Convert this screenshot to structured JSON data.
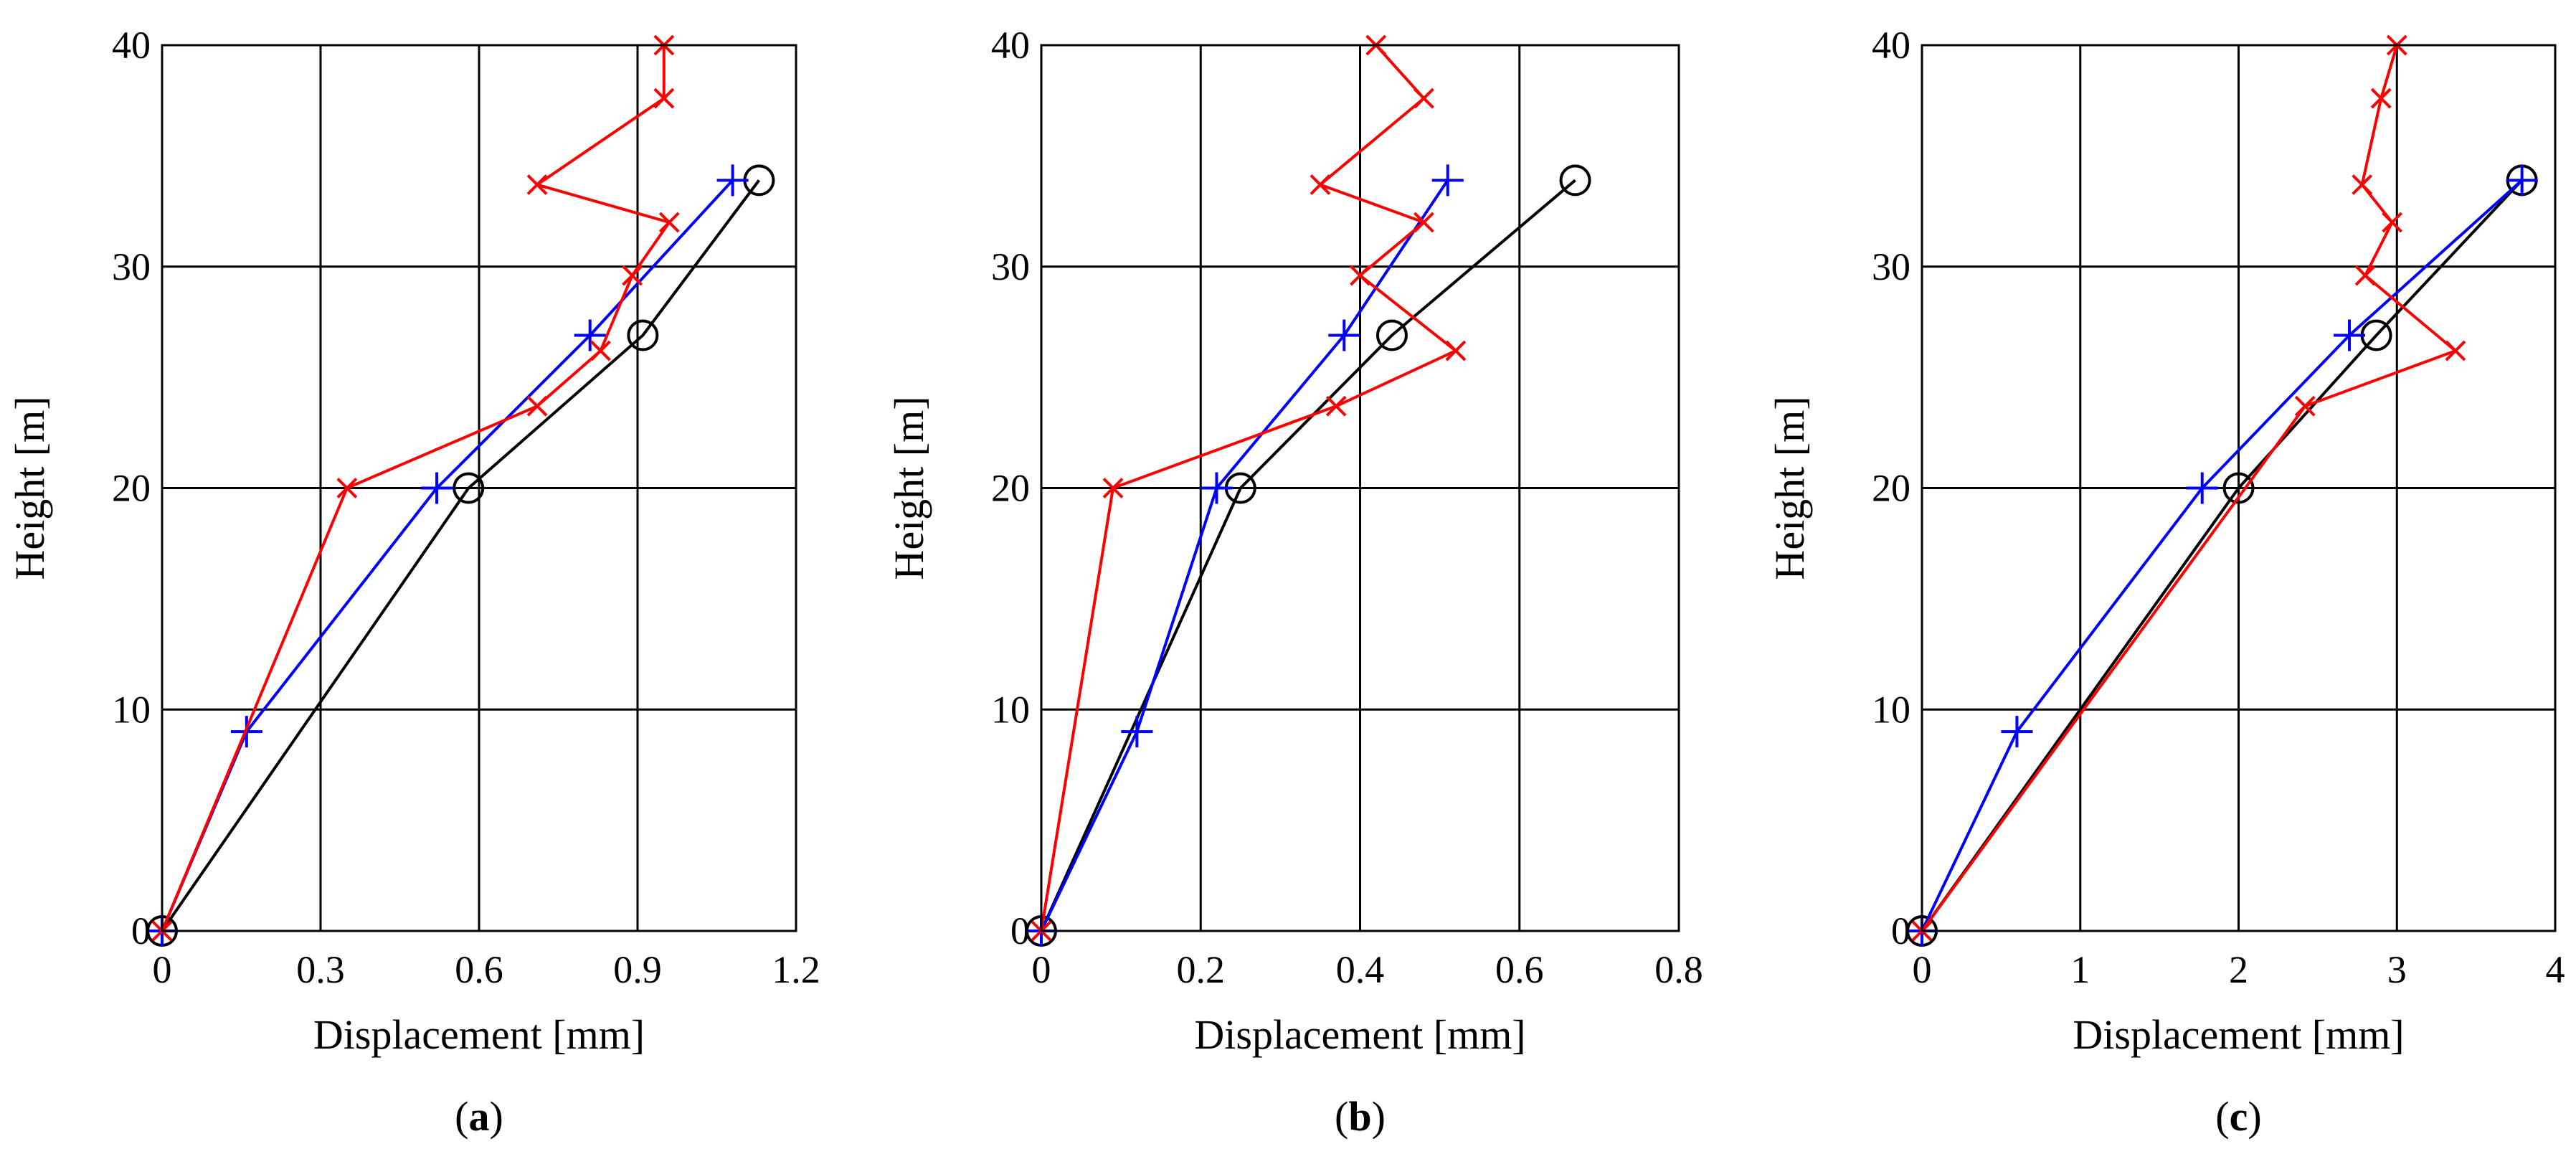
{
  "chart_data": [
    {
      "type": "line",
      "panel_label": "a",
      "xlabel": "Displacement [mm]",
      "ylabel": "Height [m]",
      "xlim": [
        0,
        1.2
      ],
      "ylim": [
        0,
        40
      ],
      "xticks": [
        "0",
        "0.3",
        "0.6",
        "0.9",
        "1.2"
      ],
      "yticks": [
        "0",
        "10",
        "20",
        "30",
        "40"
      ],
      "grid": true,
      "series": [
        {
          "name": "circle",
          "color": "#000000",
          "marker": "circle",
          "x": [
            0,
            0.58,
            0.91,
            1.13
          ],
          "y": [
            0,
            20,
            26.9,
            33.9
          ]
        },
        {
          "name": "plus",
          "color": "#0000ff",
          "marker": "plus",
          "x": [
            0,
            0.16,
            0.52,
            0.81,
            1.08
          ],
          "y": [
            0,
            9,
            20,
            26.9,
            33.9
          ]
        },
        {
          "name": "cross",
          "color": "#ff0000",
          "marker": "x",
          "x": [
            0,
            0.35,
            0.71,
            0.83,
            0.89,
            0.96,
            0.71,
            0.95,
            0.95
          ],
          "y": [
            0,
            20,
            23.7,
            26.2,
            29.6,
            32,
            33.7,
            37.6,
            40
          ]
        }
      ]
    },
    {
      "type": "line",
      "panel_label": "b",
      "xlabel": "Displacement [mm]",
      "ylabel": "Height [m]",
      "xlim": [
        0,
        0.8
      ],
      "ylim": [
        0,
        40
      ],
      "xticks": [
        "0",
        "0.2",
        "0.4",
        "0.6",
        "0.8"
      ],
      "yticks": [
        "0",
        "10",
        "20",
        "30",
        "40"
      ],
      "grid": true,
      "series": [
        {
          "name": "circle",
          "color": "#000000",
          "marker": "circle",
          "x": [
            0,
            0.25,
            0.44,
            0.67
          ],
          "y": [
            0,
            20,
            26.9,
            33.9
          ]
        },
        {
          "name": "plus",
          "color": "#0000ff",
          "marker": "plus",
          "x": [
            0,
            0.12,
            0.22,
            0.38,
            0.51
          ],
          "y": [
            0,
            9,
            20,
            26.9,
            33.9
          ]
        },
        {
          "name": "cross",
          "color": "#ff0000",
          "marker": "x",
          "x": [
            0,
            0.09,
            0.37,
            0.52,
            0.4,
            0.48,
            0.35,
            0.48,
            0.42
          ],
          "y": [
            0,
            20,
            23.7,
            26.2,
            29.6,
            32,
            33.7,
            37.6,
            40
          ]
        }
      ]
    },
    {
      "type": "line",
      "panel_label": "c",
      "xlabel": "Displacement [mm]",
      "ylabel": "Height [m]",
      "xlim": [
        0,
        4
      ],
      "ylim": [
        0,
        40
      ],
      "xticks": [
        "0",
        "1",
        "2",
        "3",
        "4"
      ],
      "yticks": [
        "0",
        "10",
        "20",
        "30",
        "40"
      ],
      "grid": true,
      "series": [
        {
          "name": "circle",
          "color": "#000000",
          "marker": "circle",
          "x": [
            0,
            2.0,
            2.87,
            3.79
          ],
          "y": [
            0,
            20,
            26.9,
            33.9
          ]
        },
        {
          "name": "plus",
          "color": "#0000ff",
          "marker": "plus",
          "x": [
            0,
            0.6,
            1.77,
            2.7,
            3.79
          ],
          "y": [
            0,
            9,
            20,
            26.9,
            33.9
          ]
        },
        {
          "name": "cross",
          "color": "#ff0000",
          "marker": "x",
          "x": [
            0,
            2.42,
            3.37,
            2.8,
            2.97,
            2.78,
            2.9,
            3.0
          ],
          "y": [
            0,
            23.7,
            26.2,
            29.6,
            32,
            33.7,
            37.6,
            40
          ]
        }
      ]
    }
  ],
  "captions": [
    "(a)",
    "(b)",
    "(c)"
  ]
}
